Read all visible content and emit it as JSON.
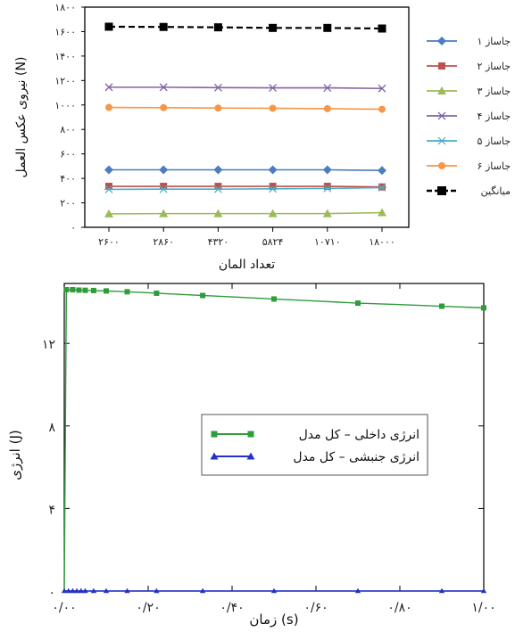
{
  "chart_data": [
    {
      "type": "line",
      "title": "",
      "xlabel": "تعداد المان",
      "ylabel": "نیروی عکس العمل (N)",
      "categories": [
        "۲۶۰۰",
        "۲۸۶۰",
        "۴۳۲۰",
        "۵۸۲۴",
        "۱۰۷۱۰",
        "۱۸۰۰۰"
      ],
      "y_ticks": [
        "۰",
        "۲۰۰",
        "۴۰۰",
        "۶۰۰",
        "۸۰۰",
        "۱۰۰۰",
        "۱۲۰۰",
        "۱۴۰۰",
        "۱۶۰۰",
        "۱۸۰۰"
      ],
      "ylim": [
        0,
        1800
      ],
      "grid": false,
      "legend_position": "right",
      "series": [
        {
          "name": "جاساز ۱",
          "color": "#4a7ec0",
          "marker": "diamond",
          "values": [
            470,
            470,
            470,
            470,
            470,
            465
          ]
        },
        {
          "name": "جاساز ۲",
          "color": "#c0504d",
          "marker": "square",
          "values": [
            335,
            335,
            335,
            335,
            335,
            330
          ]
        },
        {
          "name": "جاساز ۳",
          "color": "#9bbb59",
          "marker": "triangle",
          "values": [
            110,
            112,
            112,
            112,
            112,
            120
          ]
        },
        {
          "name": "جاساز ۴",
          "color": "#8064a2",
          "marker": "x",
          "values": [
            1145,
            1145,
            1142,
            1140,
            1140,
            1135
          ]
        },
        {
          "name": "جاساز ۵",
          "color": "#4bacc6",
          "marker": "asterisk",
          "values": [
            310,
            312,
            312,
            315,
            318,
            325
          ]
        },
        {
          "name": "جاساز ۶",
          "color": "#f79646",
          "marker": "circle",
          "values": [
            980,
            978,
            975,
            973,
            970,
            965
          ]
        },
        {
          "name": "میانگین",
          "color": "#000000",
          "marker": "filled-square",
          "dashed": true,
          "values": [
            1640,
            1638,
            1635,
            1630,
            1630,
            1625
          ]
        }
      ]
    },
    {
      "type": "line",
      "title": "",
      "xlabel": "زمان (s)",
      "ylabel": "انرژی (J)",
      "x_ticks": [
        "۰/۰۰",
        "۰/۲۰",
        "۰/۴۰",
        "۰/۶۰",
        "۰/۸۰",
        "۱/۰۰"
      ],
      "x_tick_values": [
        0,
        0.2,
        0.4,
        0.6,
        0.8,
        1.0
      ],
      "y_ticks": [
        "۰",
        "۴",
        "۸",
        "۱۲"
      ],
      "y_tick_values": [
        0,
        4,
        8,
        12
      ],
      "xlim": [
        0,
        1.0
      ],
      "ylim": [
        0,
        14.6
      ],
      "grid": false,
      "legend_position": "center-right",
      "series": [
        {
          "name": "انرژی داخلی – کل مدل",
          "color": "#2e9c3a",
          "marker": "square",
          "x": [
            0,
            0.005,
            0.02,
            0.035,
            0.05,
            0.07,
            0.1,
            0.15,
            0.2,
            0.3,
            0.4,
            0.5,
            0.6,
            0.7,
            0.8,
            0.9,
            1.0
          ],
          "y": [
            0,
            14.6,
            14.6,
            14.58,
            14.57,
            14.56,
            14.54,
            14.5,
            14.45,
            14.35,
            14.25,
            14.15,
            14.05,
            13.95,
            13.88,
            13.8,
            13.72
          ],
          "markers_x": [
            0.005,
            0.02,
            0.035,
            0.05,
            0.07,
            0.1,
            0.15,
            0.22,
            0.33,
            0.5,
            0.7,
            0.9,
            1.0
          ]
        },
        {
          "name": "انرژی جنبشی – کل مدل",
          "color": "#2431c9",
          "marker": "triangle",
          "x": [
            0,
            1.0
          ],
          "y": [
            0,
            0
          ],
          "markers_x": [
            0,
            0.01,
            0.02,
            0.03,
            0.04,
            0.05,
            0.07,
            0.1,
            0.15,
            0.22,
            0.33,
            0.5,
            0.7,
            0.9,
            1.0
          ]
        }
      ]
    }
  ]
}
